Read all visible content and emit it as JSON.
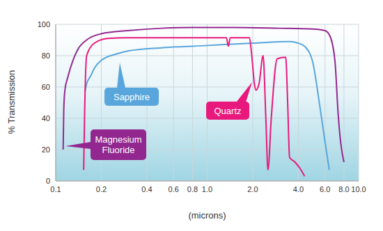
{
  "chart_data": {
    "type": "line",
    "x_label": "(microns)",
    "y_label": "% Transmission",
    "log": "x",
    "grid": true,
    "xlim": [
      0.1,
      10
    ],
    "xticks": [
      0.1,
      0.2,
      0.4,
      0.6,
      0.8,
      {
        "value": 1,
        "label": "1.0"
      },
      {
        "value": 2,
        "label": "2.0"
      },
      {
        "value": 4,
        "label": "4.0"
      },
      {
        "value": 6,
        "label": "6.0"
      },
      {
        "value": 8,
        "label": "8.0"
      },
      {
        "value": 10,
        "label": "10.0"
      }
    ],
    "ylim": [
      0,
      100
    ],
    "yticks": [
      0,
      20,
      40,
      60,
      80,
      100
    ],
    "series": [
      {
        "name": "Sapphire",
        "color": "#58a6dc",
        "x": [
          0.156,
          0.16,
          0.17,
          0.18,
          0.2,
          0.25,
          0.3,
          0.5,
          1,
          2,
          3.5,
          4,
          4.5,
          5,
          5.5,
          6,
          6.4
        ],
        "values": [
          57,
          62,
          67,
          72,
          77,
          81,
          83,
          85,
          86.5,
          88,
          89,
          88,
          85,
          75,
          50,
          25,
          7
        ]
      },
      {
        "name": "Quartz",
        "color": "#e8187c",
        "x": [
          0.153,
          0.155,
          0.16,
          0.18,
          0.22,
          0.3,
          1.3,
          1.34,
          1.38,
          1.42,
          1.46,
          1.9,
          1.97,
          2.05,
          2.1,
          2.2,
          2.34,
          2.44,
          2.52,
          2.65,
          2.9,
          3.3,
          3.4,
          3.5,
          3.8,
          4.1,
          4.4
        ],
        "values": [
          7,
          40,
          80,
          88,
          91,
          91.5,
          91.5,
          91.5,
          86,
          91.5,
          91.5,
          91.5,
          80,
          62,
          58,
          62,
          80,
          40,
          7,
          40,
          78,
          79,
          50,
          15,
          12,
          8,
          3
        ]
      },
      {
        "name": "Magnesium Fluoride",
        "color": "#92278f",
        "x": [
          0.112,
          0.113,
          0.115,
          0.12,
          0.13,
          0.14,
          0.16,
          0.2,
          0.3,
          0.5,
          0.8,
          1.5,
          3,
          5,
          6,
          6.5,
          7,
          7.3,
          7.6,
          8
        ],
        "values": [
          20,
          45,
          58,
          66,
          77,
          84,
          90,
          94,
          96,
          97.5,
          98,
          98,
          97.5,
          97,
          96,
          92,
          75,
          45,
          25,
          12
        ]
      }
    ]
  }
}
